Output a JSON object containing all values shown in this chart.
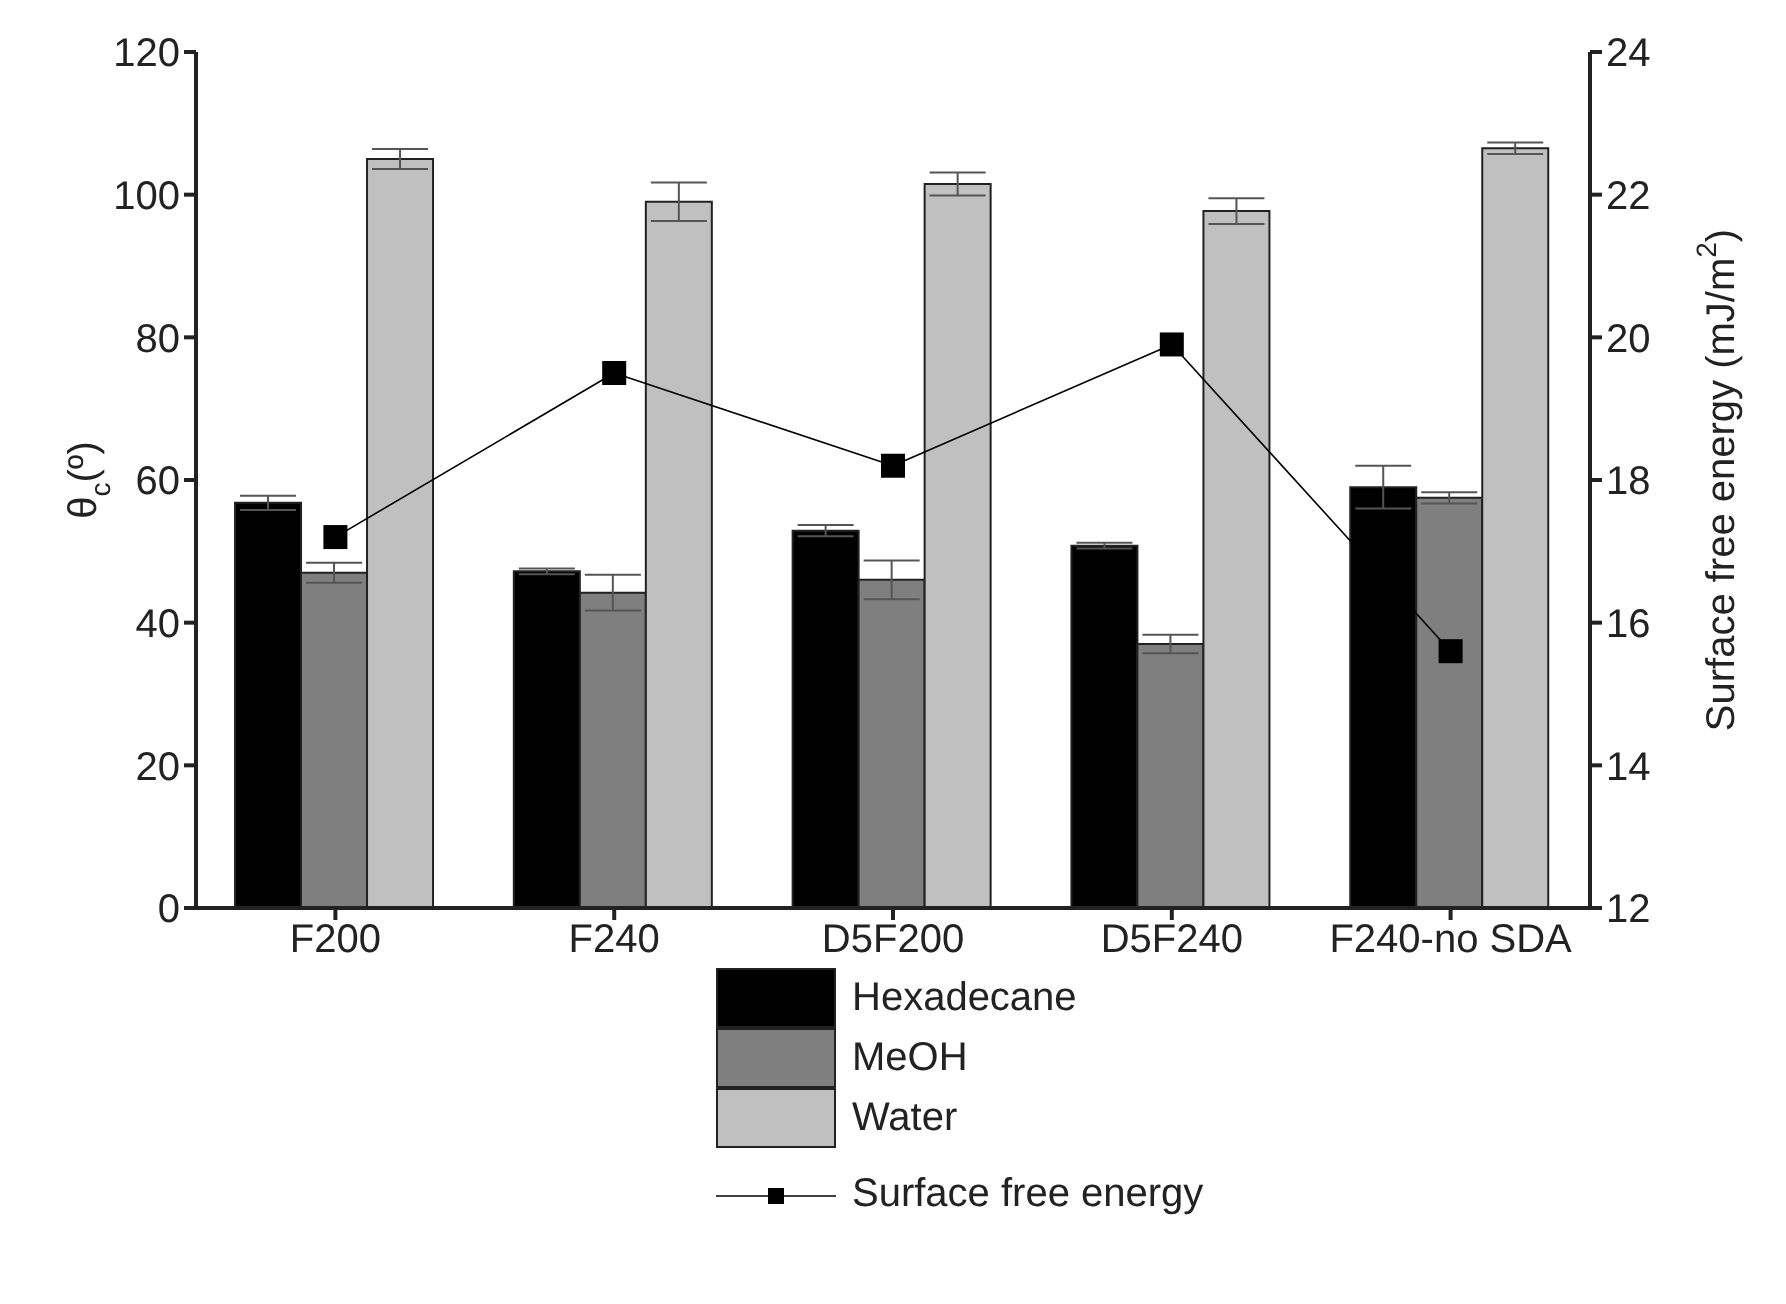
{
  "chart_data": {
    "type": "bar",
    "categories": [
      "F200",
      "F240",
      "D5F200",
      "D5F240",
      "F240-no SDA"
    ],
    "ylabel": "θ$_{c}$(º)",
    "y2label": "Surface free energy (mJ/m$^{2}$)",
    "ylim": [
      0,
      120
    ],
    "yticks": [
      0,
      20,
      40,
      60,
      80,
      100,
      120
    ],
    "y2lim": [
      12,
      24
    ],
    "y2ticks": [
      12,
      14,
      16,
      18,
      20,
      22,
      24
    ],
    "series": [
      {
        "name": "Hexadecane",
        "color": "#000000",
        "values": [
          56.8,
          47.2,
          52.9,
          50.8,
          59.0
        ],
        "errors": [
          1,
          0.4,
          0.8,
          0.4,
          3
        ]
      },
      {
        "name": "MeOH",
        "color": "#7f7f7f",
        "values": [
          47,
          44.2,
          46,
          37,
          57.5
        ],
        "errors": [
          1.4,
          2.5,
          2.7,
          1.3,
          0.8
        ]
      },
      {
        "name": "Water",
        "color": "#c0c0c0",
        "values": [
          105,
          99,
          101.5,
          97.7,
          106.5
        ],
        "errors": [
          1.4,
          2.7,
          1.6,
          1.8,
          0.8
        ]
      },
      {
        "name": "Surface free energy",
        "type": "line",
        "axis": "y2",
        "color": "#000000",
        "values": [
          17.2,
          19.5,
          18.2,
          19.9,
          15.6
        ]
      }
    ],
    "marker": "square",
    "legend": "bottom",
    "grid": false
  }
}
